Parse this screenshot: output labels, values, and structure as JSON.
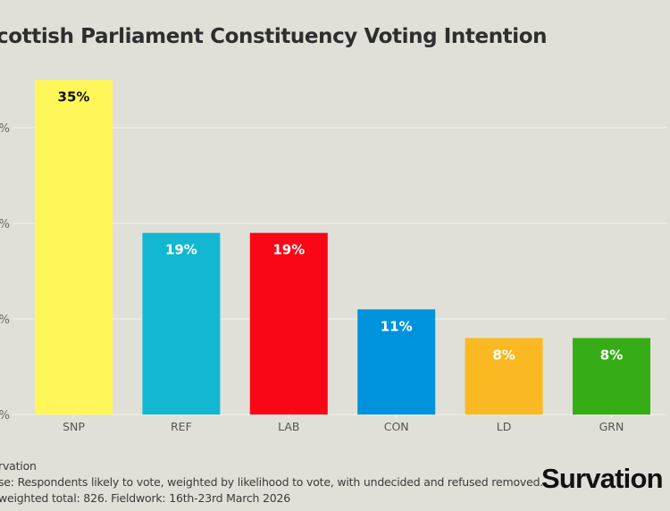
{
  "chart_data": {
    "type": "bar",
    "title": "cottish Parliament Constituency Voting Intention",
    "categories": [
      "SNP",
      "REF",
      "LAB",
      "CON",
      "LD",
      "GRN"
    ],
    "values": [
      35,
      19,
      19,
      11,
      8,
      8
    ],
    "data_labels": [
      "35%",
      "19%",
      "19%",
      "11%",
      "8%",
      "8%"
    ],
    "colors": [
      "#fff75a",
      "#13b7d2",
      "#f90716",
      "#0093dd",
      "#fab922",
      "#36ad16"
    ],
    "label_colors": [
      "#111111",
      "#ffffff",
      "#ffffff",
      "#ffffff",
      "#ffffff",
      "#ffffff"
    ],
    "ylim": [
      0,
      35
    ],
    "yticks": [
      0,
      10,
      20,
      30
    ],
    "ytick_labels": [
      "%",
      "%",
      "%",
      "%"
    ],
    "grid": true,
    "xlabel": "",
    "ylabel": ""
  },
  "footer": {
    "source": "rvation",
    "base": "se: Respondents likely to vote, weighted by likelihood to vote, with undecided and refused removed.",
    "totals": "weighted total: 826. Fieldwork: 16th-23rd March 2026"
  },
  "logo": {
    "text": "Survation"
  }
}
